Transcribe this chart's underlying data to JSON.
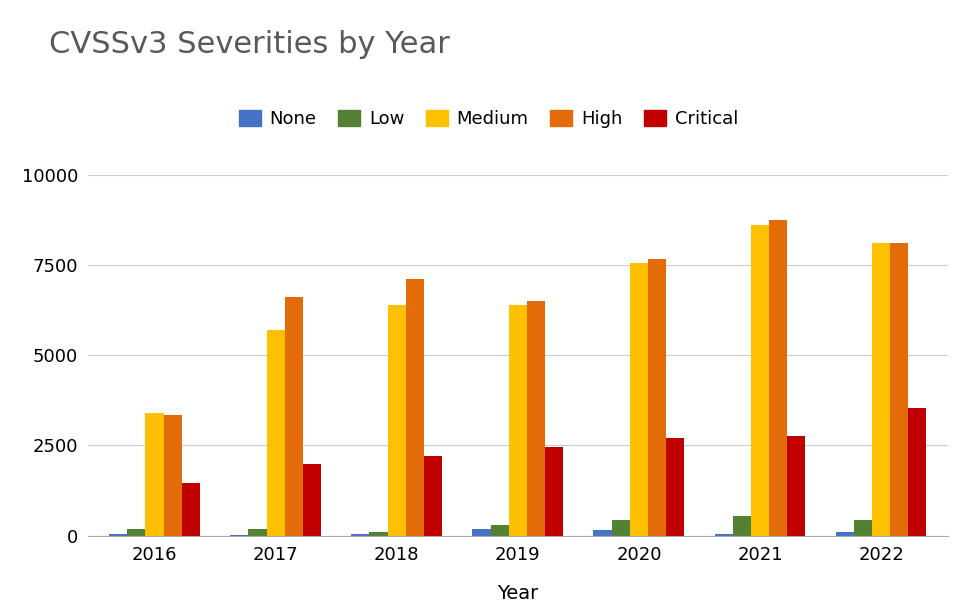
{
  "title": "CVSSv3 Severities by Year",
  "xlabel": "Year",
  "years": [
    2016,
    2017,
    2018,
    2019,
    2020,
    2021,
    2022
  ],
  "categories": [
    "None",
    "Low",
    "Medium",
    "High",
    "Critical"
  ],
  "colors": [
    "#4472C4",
    "#548235",
    "#FFC000",
    "#E36C09",
    "#C00000"
  ],
  "values": {
    "None": [
      50,
      30,
      50,
      200,
      150,
      50,
      100
    ],
    "Low": [
      200,
      200,
      100,
      300,
      450,
      550,
      450
    ],
    "Medium": [
      3400,
      5700,
      6400,
      6400,
      7550,
      8600,
      8100
    ],
    "High": [
      3350,
      6600,
      7100,
      6500,
      7650,
      8750,
      8100
    ],
    "Critical": [
      1450,
      2000,
      2200,
      2450,
      2700,
      2750,
      3550
    ]
  },
  "ylim": [
    0,
    10000
  ],
  "yticks": [
    0,
    2500,
    5000,
    7500,
    10000
  ],
  "background_color": "#ffffff",
  "title_fontsize": 22,
  "legend_fontsize": 13,
  "tick_fontsize": 13,
  "xlabel_fontsize": 14,
  "bar_width": 0.15,
  "grid_color": "#cccccc",
  "title_color": "#595959"
}
